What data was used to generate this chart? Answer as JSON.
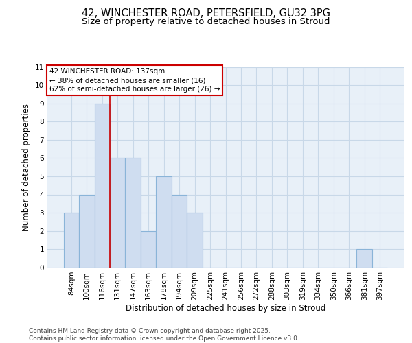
{
  "title_line1": "42, WINCHESTER ROAD, PETERSFIELD, GU32 3PG",
  "title_line2": "Size of property relative to detached houses in Stroud",
  "xlabel": "Distribution of detached houses by size in Stroud",
  "ylabel": "Number of detached properties",
  "categories": [
    "84sqm",
    "100sqm",
    "116sqm",
    "131sqm",
    "147sqm",
    "163sqm",
    "178sqm",
    "194sqm",
    "209sqm",
    "225sqm",
    "241sqm",
    "256sqm",
    "272sqm",
    "288sqm",
    "303sqm",
    "319sqm",
    "334sqm",
    "350sqm",
    "366sqm",
    "381sqm",
    "397sqm"
  ],
  "values": [
    3,
    4,
    9,
    6,
    6,
    2,
    5,
    4,
    3,
    0,
    0,
    0,
    0,
    0,
    0,
    0,
    0,
    0,
    0,
    1,
    0
  ],
  "bar_color": "#cfddf0",
  "bar_edgecolor": "#8ab4d8",
  "bar_linewidth": 0.8,
  "grid_color": "#c8d8e8",
  "bg_color": "#e8f0f8",
  "fig_bg_color": "#ffffff",
  "vline_x_index": 3,
  "vline_color": "#cc0000",
  "annotation_text": "42 WINCHESTER ROAD: 137sqm\n← 38% of detached houses are smaller (16)\n62% of semi-detached houses are larger (26) →",
  "annotation_box_edgecolor": "#cc0000",
  "ylim": [
    0,
    11
  ],
  "yticks": [
    0,
    1,
    2,
    3,
    4,
    5,
    6,
    7,
    8,
    9,
    10,
    11
  ],
  "footer_text": "Contains HM Land Registry data © Crown copyright and database right 2025.\nContains public sector information licensed under the Open Government Licence v3.0.",
  "title_fontsize": 10.5,
  "subtitle_fontsize": 9.5,
  "axis_label_fontsize": 8.5,
  "tick_fontsize": 7.5,
  "annotation_fontsize": 7.5,
  "footer_fontsize": 6.5
}
